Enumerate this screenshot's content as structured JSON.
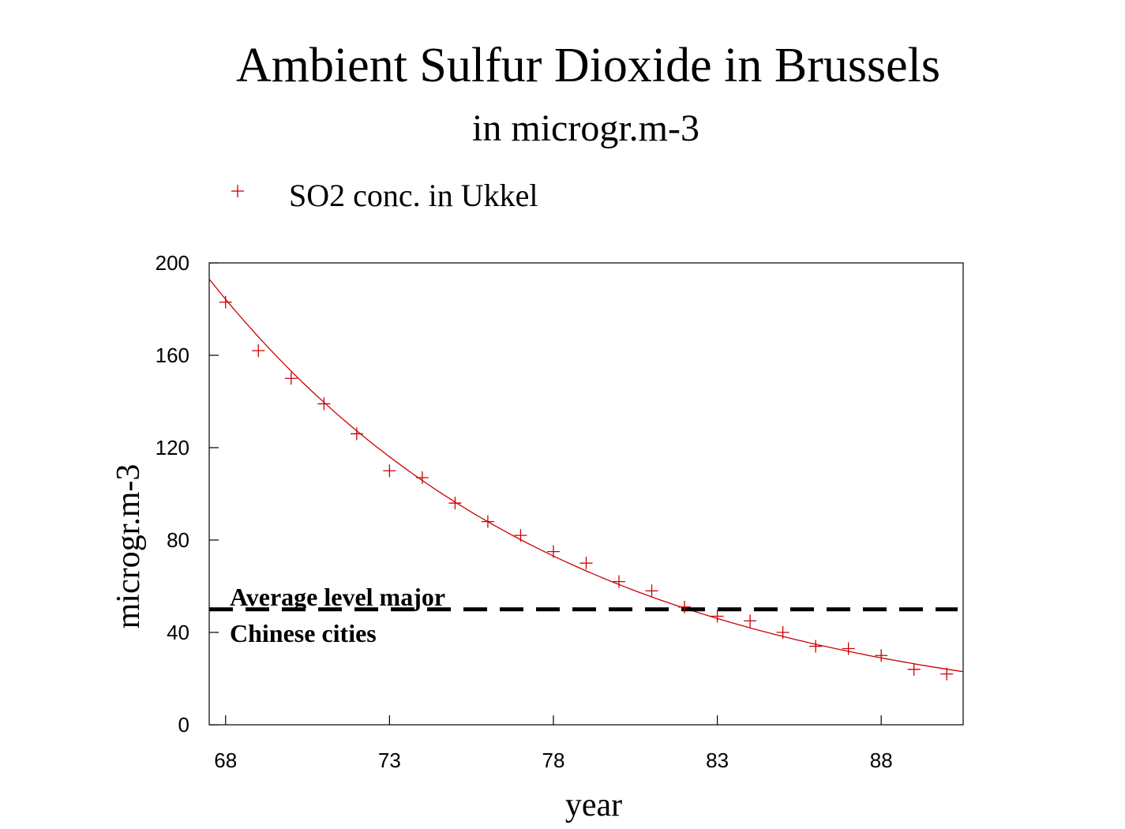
{
  "chart_data": {
    "type": "scatter",
    "title": "Ambient Sulfur Dioxide in Brussels",
    "subtitle": "in microgr.m-3",
    "xlabel": "year",
    "ylabel": "microgr.m-3",
    "xlim": [
      67.5,
      90.5
    ],
    "ylim": [
      0,
      200
    ],
    "x_ticks": [
      68,
      73,
      78,
      83,
      88
    ],
    "y_ticks": [
      0,
      40,
      80,
      120,
      160,
      200
    ],
    "grid": false,
    "legend_position": "top-left",
    "series": [
      {
        "name": "SO2 conc. in Ukkel",
        "marker": "plus",
        "color": "#cc0000",
        "x": [
          68,
          69,
          70,
          71,
          72,
          73,
          74,
          75,
          76,
          77,
          78,
          79,
          80,
          81,
          82,
          83,
          84,
          85,
          86,
          87,
          88,
          89,
          90
        ],
        "y": [
          183,
          162,
          150,
          139,
          126,
          110,
          107,
          96,
          88,
          82,
          75,
          70,
          62,
          58,
          51,
          47,
          45,
          40,
          34,
          33,
          30,
          24,
          22
        ]
      }
    ],
    "trend_line": {
      "color": "#cc0000",
      "x": [
        67.5,
        90.5
      ],
      "y": [
        193,
        23
      ]
    },
    "reference_line": {
      "y": 50,
      "style": "dashed",
      "color": "#000000",
      "label_line1": "Average level major",
      "label_line2": "Chinese cities"
    }
  }
}
